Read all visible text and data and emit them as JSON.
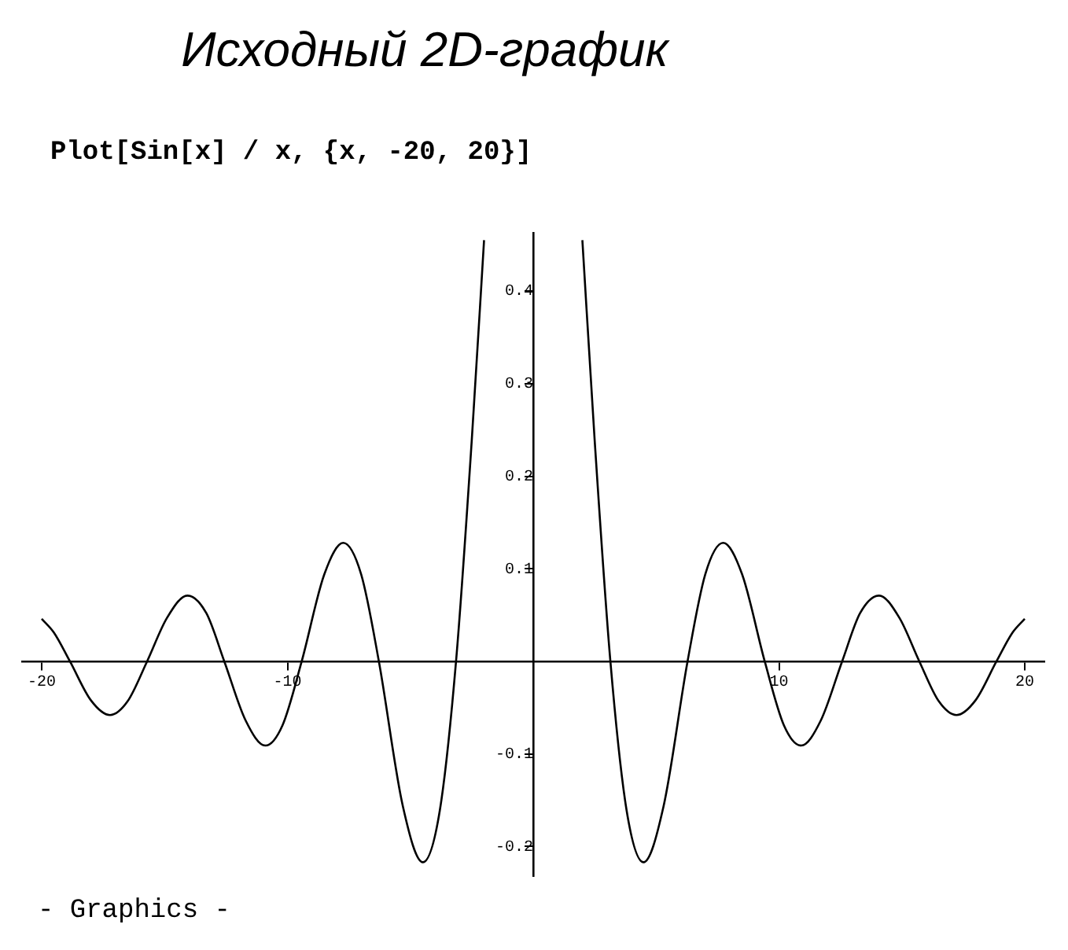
{
  "chart_data": {
    "type": "line",
    "title": "Исходный 2D-график",
    "subtitle": "Plot[Sin[x] / x, {x, -20, 20}]",
    "annotations": [
      "- Graphics -"
    ],
    "x": [
      -20,
      -19.5,
      -18.85,
      -18,
      -17.22,
      -16.5,
      -15.71,
      -14.9,
      -14.07,
      -13.3,
      -12.57,
      -11.7,
      -10.9,
      -10.2,
      -9.42,
      -8.5,
      -7.73,
      -7,
      -6.28,
      -5.3,
      -4.49,
      -3.8,
      -3.14,
      -2.5,
      -2,
      0,
      2,
      2.5,
      3.14,
      3.8,
      4.49,
      5.3,
      6.28,
      7,
      7.73,
      8.5,
      9.42,
      10.2,
      10.9,
      11.7,
      12.57,
      13.3,
      14.07,
      14.9,
      15.71,
      16.5,
      17.22,
      18,
      18.85,
      19.5,
      20
    ],
    "series": [
      {
        "color": "#000000",
        "values": [
          0.046,
          0.031,
          0,
          -0.042,
          -0.058,
          -0.043,
          0,
          0.047,
          0.071,
          0.052,
          0,
          -0.064,
          -0.091,
          -0.069,
          0,
          0.094,
          0.128,
          0.094,
          0,
          -0.157,
          -0.217,
          -0.161,
          0,
          0.239,
          0.455,
          null,
          0.455,
          0.239,
          0,
          -0.161,
          -0.217,
          -0.157,
          0,
          0.094,
          0.128,
          0.094,
          0,
          -0.069,
          -0.091,
          -0.064,
          0,
          0.052,
          0.071,
          0.047,
          0,
          -0.043,
          -0.058,
          -0.042,
          0,
          0.031,
          0.046
        ]
      }
    ],
    "xlim": [
      -20.8,
      20.8
    ],
    "ylim": [
      -0.232,
      0.463
    ],
    "xticks": [
      -20,
      -10,
      10,
      20
    ],
    "yticks": [
      -0.2,
      -0.1,
      0.1,
      0.2,
      0.3,
      0.4
    ],
    "grid": false,
    "legend": false,
    "marker": "none",
    "line_style": "solid"
  }
}
